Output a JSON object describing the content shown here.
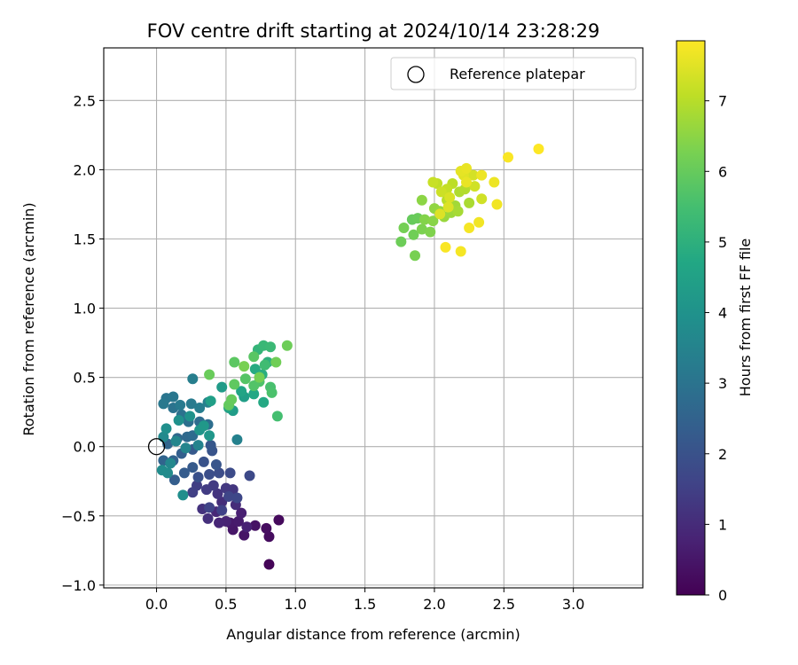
{
  "chart_data": {
    "type": "scatter",
    "title": "FOV centre drift starting at 2024/10/14 23:28:29",
    "xlabel": "Angular distance from reference (arcmin)",
    "ylabel": "Rotation from reference (arcmin)",
    "xlim": [
      -0.38,
      3.5
    ],
    "ylim": [
      -1.02,
      2.88
    ],
    "xticks": [
      0.0,
      0.5,
      1.0,
      1.5,
      2.0,
      2.5,
      3.0
    ],
    "yticks": [
      -1.0,
      -0.5,
      0.0,
      0.5,
      1.0,
      1.5,
      2.0,
      2.5
    ],
    "xtick_labels": [
      "0.0",
      "0.5",
      "1.0",
      "1.5",
      "2.0",
      "2.5",
      "3.0"
    ],
    "ytick_labels": [
      "−1.0",
      "−0.5",
      "0.0",
      "0.5",
      "1.0",
      "1.5",
      "2.0",
      "2.5"
    ],
    "grid": true,
    "legend": {
      "position": "top-right",
      "entries": [
        "Reference platepar"
      ]
    },
    "reference_point": {
      "x": 0.0,
      "y": 0.0,
      "label": "Reference platepar"
    },
    "colorbar": {
      "label": "Hours from first FF file",
      "colormap": "viridis",
      "range": [
        0,
        7.85
      ],
      "ticks": [
        0,
        1,
        2,
        3,
        4,
        5,
        6,
        7
      ],
      "tick_labels": [
        "0",
        "1",
        "2",
        "3",
        "4",
        "5",
        "6",
        "7"
      ]
    },
    "point_format": "[x_arcmin, y_arcmin, hours]",
    "points": [
      [
        0.81,
        -0.85,
        0.1
      ],
      [
        0.88,
        -0.53,
        0.2
      ],
      [
        0.81,
        -0.65,
        0.25
      ],
      [
        0.79,
        -0.59,
        0.3
      ],
      [
        0.71,
        -0.57,
        0.4
      ],
      [
        0.63,
        -0.64,
        0.45
      ],
      [
        0.55,
        -0.6,
        0.5
      ],
      [
        0.53,
        -0.55,
        0.55
      ],
      [
        0.59,
        -0.54,
        0.6
      ],
      [
        0.61,
        -0.48,
        0.7
      ],
      [
        0.65,
        -0.58,
        0.75
      ],
      [
        0.5,
        -0.54,
        0.8
      ],
      [
        0.45,
        -0.55,
        0.85
      ],
      [
        0.43,
        -0.47,
        0.9
      ],
      [
        0.57,
        -0.42,
        1.0
      ],
      [
        0.47,
        -0.4,
        1.05
      ],
      [
        0.37,
        -0.52,
        1.1
      ],
      [
        0.33,
        -0.45,
        1.15
      ],
      [
        0.44,
        -0.34,
        1.2
      ],
      [
        0.55,
        -0.31,
        1.25
      ],
      [
        0.5,
        -0.3,
        1.3
      ],
      [
        0.41,
        -0.28,
        1.35
      ],
      [
        0.36,
        -0.31,
        1.4
      ],
      [
        0.29,
        -0.28,
        1.45
      ],
      [
        0.26,
        -0.33,
        1.5
      ],
      [
        0.47,
        -0.46,
        1.55
      ],
      [
        0.38,
        -0.44,
        1.6
      ],
      [
        0.52,
        -0.36,
        1.65
      ],
      [
        0.58,
        -0.37,
        1.7
      ],
      [
        0.67,
        -0.21,
        1.75
      ],
      [
        0.53,
        -0.19,
        1.8
      ],
      [
        0.45,
        -0.19,
        1.85
      ],
      [
        0.38,
        -0.2,
        1.9
      ],
      [
        0.3,
        -0.22,
        1.95
      ],
      [
        0.34,
        -0.11,
        2.0
      ],
      [
        0.4,
        -0.03,
        2.05
      ],
      [
        0.43,
        -0.13,
        2.1
      ],
      [
        0.39,
        0.01,
        2.15
      ],
      [
        0.26,
        -0.02,
        2.2
      ],
      [
        0.26,
        -0.15,
        2.25
      ],
      [
        0.2,
        -0.19,
        2.3
      ],
      [
        0.13,
        -0.24,
        2.35
      ],
      [
        0.18,
        -0.05,
        2.4
      ],
      [
        0.12,
        -0.1,
        2.5
      ],
      [
        0.05,
        -0.1,
        2.55
      ],
      [
        0.08,
        0.02,
        2.6
      ],
      [
        0.15,
        0.06,
        2.65
      ],
      [
        0.22,
        0.07,
        2.7
      ],
      [
        0.26,
        0.08,
        2.75
      ],
      [
        0.31,
        0.18,
        2.8
      ],
      [
        0.37,
        0.16,
        2.85
      ],
      [
        0.23,
        0.18,
        2.9
      ],
      [
        0.18,
        0.23,
        2.95
      ],
      [
        0.12,
        0.28,
        3.0
      ],
      [
        0.07,
        0.35,
        3.05
      ],
      [
        0.12,
        0.36,
        3.1
      ],
      [
        0.05,
        0.31,
        3.15
      ],
      [
        0.17,
        0.3,
        3.2
      ],
      [
        0.25,
        0.31,
        3.25
      ],
      [
        0.31,
        0.28,
        3.3
      ],
      [
        0.26,
        0.49,
        3.35
      ],
      [
        0.37,
        0.32,
        3.4
      ],
      [
        0.58,
        0.05,
        3.45
      ],
      [
        0.3,
        0.01,
        3.5
      ],
      [
        0.21,
        -0.01,
        3.55
      ],
      [
        0.14,
        0.04,
        3.6
      ],
      [
        0.1,
        -0.12,
        3.65
      ],
      [
        0.05,
        0.07,
        3.7
      ],
      [
        0.08,
        -0.19,
        3.75
      ],
      [
        0.04,
        -0.17,
        3.8
      ],
      [
        0.19,
        -0.35,
        3.85
      ],
      [
        0.07,
        0.13,
        3.9
      ],
      [
        0.16,
        0.19,
        3.95
      ],
      [
        0.24,
        0.22,
        4.0
      ],
      [
        0.31,
        0.12,
        4.1
      ],
      [
        0.38,
        0.08,
        4.15
      ],
      [
        0.34,
        0.15,
        4.2
      ],
      [
        0.47,
        0.43,
        4.3
      ],
      [
        0.55,
        0.26,
        4.35
      ],
      [
        0.63,
        0.36,
        4.4
      ],
      [
        0.39,
        0.33,
        4.45
      ],
      [
        0.52,
        0.28,
        4.5
      ],
      [
        0.61,
        0.4,
        4.6
      ],
      [
        0.7,
        0.38,
        4.7
      ],
      [
        0.77,
        0.32,
        4.75
      ],
      [
        0.71,
        0.56,
        4.8
      ],
      [
        0.76,
        0.52,
        4.9
      ],
      [
        0.8,
        0.61,
        5.0
      ],
      [
        0.73,
        0.7,
        5.15
      ],
      [
        0.77,
        0.73,
        5.25
      ],
      [
        0.82,
        0.72,
        5.3
      ],
      [
        0.78,
        0.59,
        5.4
      ],
      [
        0.87,
        0.22,
        5.5
      ],
      [
        0.82,
        0.43,
        5.55
      ],
      [
        0.83,
        0.39,
        5.6
      ],
      [
        0.74,
        0.47,
        5.65
      ],
      [
        0.7,
        0.44,
        5.7
      ],
      [
        0.64,
        0.49,
        5.75
      ],
      [
        0.7,
        0.65,
        5.8
      ],
      [
        0.56,
        0.61,
        5.85
      ],
      [
        0.56,
        0.45,
        5.9
      ],
      [
        0.52,
        0.3,
        5.95
      ],
      [
        0.54,
        0.34,
        6.0
      ],
      [
        0.38,
        0.52,
        6.05
      ],
      [
        0.94,
        0.73,
        6.1
      ],
      [
        0.86,
        0.61,
        6.15
      ],
      [
        0.74,
        0.5,
        6.2
      ],
      [
        0.63,
        0.58,
        6.25
      ],
      [
        1.84,
        1.64,
        6.0
      ],
      [
        1.88,
        1.65,
        6.05
      ],
      [
        1.76,
        1.48,
        6.1
      ],
      [
        1.85,
        1.53,
        6.15
      ],
      [
        1.78,
        1.58,
        6.2
      ],
      [
        1.86,
        1.38,
        6.25
      ],
      [
        1.91,
        1.57,
        6.3
      ],
      [
        1.97,
        1.55,
        6.35
      ],
      [
        1.93,
        1.64,
        6.4
      ],
      [
        1.99,
        1.63,
        6.45
      ],
      [
        1.91,
        1.78,
        6.5
      ],
      [
        2.0,
        1.72,
        6.55
      ],
      [
        2.04,
        1.7,
        6.6
      ],
      [
        2.07,
        1.66,
        6.65
      ],
      [
        2.12,
        1.69,
        6.7
      ],
      [
        2.15,
        1.74,
        6.75
      ],
      [
        2.17,
        1.7,
        6.8
      ],
      [
        2.25,
        1.76,
        6.85
      ],
      [
        2.18,
        1.84,
        6.9
      ],
      [
        2.22,
        1.86,
        6.95
      ],
      [
        2.09,
        1.78,
        7.0
      ],
      [
        2.13,
        1.9,
        7.05
      ],
      [
        2.02,
        1.9,
        7.1
      ],
      [
        2.09,
        1.86,
        7.15
      ],
      [
        1.99,
        1.91,
        7.2
      ],
      [
        2.05,
        1.84,
        7.25
      ],
      [
        2.34,
        1.79,
        7.3
      ],
      [
        2.29,
        1.88,
        7.3
      ],
      [
        2.28,
        1.96,
        7.35
      ],
      [
        2.11,
        1.8,
        7.4
      ],
      [
        2.04,
        1.68,
        7.45
      ],
      [
        2.1,
        1.73,
        7.45
      ],
      [
        2.21,
        1.96,
        7.5
      ],
      [
        2.19,
        1.99,
        7.55
      ],
      [
        2.23,
        2.01,
        7.6
      ],
      [
        2.23,
        1.91,
        7.6
      ],
      [
        2.34,
        1.96,
        7.65
      ],
      [
        2.43,
        1.91,
        7.65
      ],
      [
        2.45,
        1.75,
        7.7
      ],
      [
        2.32,
        1.62,
        7.7
      ],
      [
        2.25,
        1.58,
        7.75
      ],
      [
        2.19,
        1.41,
        7.75
      ],
      [
        2.08,
        1.44,
        7.8
      ],
      [
        2.53,
        2.09,
        7.8
      ],
      [
        2.75,
        2.15,
        7.85
      ]
    ]
  }
}
